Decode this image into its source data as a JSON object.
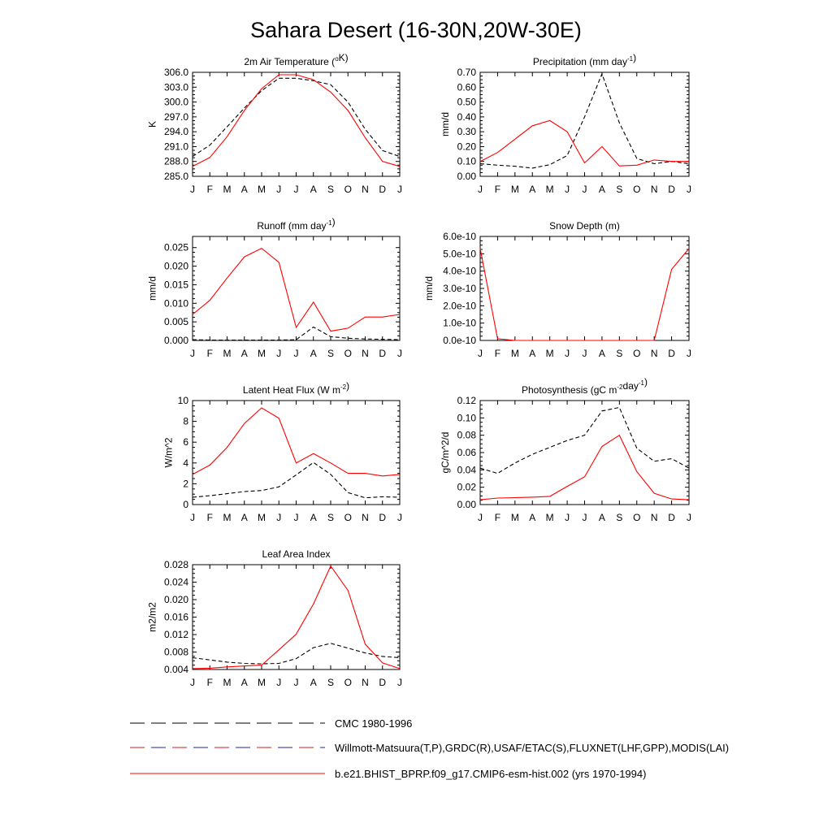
{
  "title": "Sahara Desert (16-30N,20W-30E)",
  "months": [
    "J",
    "F",
    "M",
    "A",
    "M",
    "J",
    "J",
    "A",
    "S",
    "O",
    "N",
    "D",
    "J"
  ],
  "legend": [
    {
      "label": "CMC 1980-1996",
      "style": "dash-long",
      "colors": [
        "#000000"
      ]
    },
    {
      "label": "Willmott-Matsuura(T,P),GRDC(R),USAF/ETAC(S),FLUXNET(LHF,GPP),MODIS(LAI)",
      "style": "dash-long",
      "colors": [
        "#cc2222",
        "#2222aa"
      ]
    },
    {
      "label": "b.e21.BHIST_BPRP.f09_g17.CMIP6-esm-hist.002 (yrs 1970-1994)",
      "style": "solid",
      "colors": [
        "#ff0000"
      ]
    }
  ],
  "chart_data": [
    {
      "type": "line",
      "title_parts": [
        [
          "2m Air Temperature (",
          ""
        ],
        [
          "o",
          "sup"
        ],
        [
          "K)",
          ""
        ]
      ],
      "ylabel": "K",
      "ylim": [
        285,
        306
      ],
      "yticks": [
        "285.0",
        "288.0",
        "291.0",
        "294.0",
        "297.0",
        "300.0",
        "303.0",
        "306.0"
      ],
      "ytick_values": [
        285,
        288,
        291,
        294,
        297,
        300,
        303,
        306
      ],
      "series": [
        {
          "name": "obs",
          "style": "dash",
          "color": "#000000",
          "values": [
            289.0,
            291.3,
            295.0,
            298.8,
            302.3,
            304.8,
            304.8,
            304.3,
            303.5,
            300.0,
            294.5,
            290.2,
            289.0
          ]
        },
        {
          "name": "model",
          "style": "solid",
          "color": "#ff0000",
          "values": [
            287.0,
            288.8,
            293.0,
            298.3,
            302.7,
            305.5,
            305.5,
            304.5,
            302.0,
            298.3,
            292.8,
            288.0,
            287.0
          ]
        }
      ]
    },
    {
      "type": "line",
      "title_parts": [
        [
          "Precipitation (mm day",
          ""
        ],
        [
          "-1",
          "sup"
        ],
        [
          ")",
          ""
        ]
      ],
      "ylabel": "mm/d",
      "ylim": [
        0,
        0.7
      ],
      "yticks": [
        "0.00",
        "0.10",
        "0.20",
        "0.30",
        "0.40",
        "0.50",
        "0.60",
        "0.70"
      ],
      "ytick_values": [
        0,
        0.1,
        0.2,
        0.3,
        0.4,
        0.5,
        0.6,
        0.7
      ],
      "series": [
        {
          "name": "obs",
          "style": "dash",
          "color": "#000000",
          "values": [
            0.085,
            0.075,
            0.068,
            0.055,
            0.078,
            0.14,
            0.4,
            0.69,
            0.36,
            0.12,
            0.085,
            0.1,
            0.085
          ]
        },
        {
          "name": "model",
          "style": "solid",
          "color": "#ff0000",
          "values": [
            0.1,
            0.16,
            0.25,
            0.34,
            0.375,
            0.3,
            0.09,
            0.2,
            0.07,
            0.075,
            0.11,
            0.1,
            0.1
          ]
        }
      ]
    },
    {
      "type": "line",
      "title_parts": [
        [
          "Runoff (mm day",
          ""
        ],
        [
          "-1",
          "sup"
        ],
        [
          ")",
          ""
        ]
      ],
      "ylabel": "mm/d",
      "ylim": [
        0,
        0.028
      ],
      "yticks": [
        "0.000",
        "0.005",
        "0.010",
        "0.015",
        "0.020",
        "0.025"
      ],
      "ytick_values": [
        0,
        0.005,
        0.01,
        0.015,
        0.02,
        0.025
      ],
      "series": [
        {
          "name": "obs",
          "style": "dash",
          "color": "#000000",
          "values": [
            0.0002,
            0.0001,
            0.0001,
            0.0001,
            0.0001,
            0.0001,
            0.0002,
            0.0036,
            0.001,
            0.0006,
            0.0004,
            0.0003,
            0.0002
          ]
        },
        {
          "name": "model",
          "style": "solid",
          "color": "#ff0000",
          "values": [
            0.007,
            0.0108,
            0.0168,
            0.0225,
            0.0248,
            0.021,
            0.0035,
            0.0103,
            0.0025,
            0.0033,
            0.0063,
            0.0063,
            0.007
          ]
        }
      ]
    },
    {
      "type": "line",
      "title_parts": [
        [
          "Snow Depth (m)",
          ""
        ]
      ],
      "ylabel": "mm/d",
      "ylim": [
        0,
        6e-10
      ],
      "yticks": [
        "0.0e-10",
        "1.0e-10",
        "2.0e-10",
        "3.0e-10",
        "4.0e-10",
        "5.0e-10",
        "6.0e-10"
      ],
      "ytick_values": [
        0,
        1e-10,
        2e-10,
        3e-10,
        4e-10,
        5e-10,
        6e-10
      ],
      "series": [
        {
          "name": "obs",
          "style": "dash",
          "color": "#000000",
          "values": [
            0,
            0,
            0,
            0,
            0,
            0,
            0,
            0,
            0,
            0,
            0,
            0,
            0
          ]
        },
        {
          "name": "model",
          "style": "solid",
          "color": "#ff0000",
          "values": [
            5.3e-10,
            1e-11,
            0,
            0,
            0,
            0,
            0,
            0,
            0,
            0,
            0,
            4.1e-10,
            5.3e-10
          ]
        }
      ]
    },
    {
      "type": "line",
      "title_parts": [
        [
          "Latent Heat Flux (W m",
          ""
        ],
        [
          "-2",
          "sup"
        ],
        [
          ")",
          ""
        ]
      ],
      "ylabel": "W/m^2",
      "ylim": [
        0,
        10
      ],
      "yticks": [
        "0",
        "2",
        "4",
        "6",
        "8",
        "10"
      ],
      "ytick_values": [
        0,
        2,
        4,
        6,
        8,
        10
      ],
      "series": [
        {
          "name": "obs",
          "style": "dash",
          "color": "#000000",
          "values": [
            0.7,
            0.85,
            1.05,
            1.25,
            1.35,
            1.7,
            2.85,
            4.05,
            2.9,
            1.15,
            0.65,
            0.75,
            0.7
          ]
        },
        {
          "name": "model",
          "style": "solid",
          "color": "#ff0000",
          "values": [
            2.9,
            3.8,
            5.5,
            7.8,
            9.3,
            8.3,
            4.0,
            4.9,
            4.0,
            3.0,
            3.0,
            2.75,
            2.9
          ]
        }
      ]
    },
    {
      "type": "line",
      "title_parts": [
        [
          "Photosynthesis (gC m",
          ""
        ],
        [
          "-2",
          "sup"
        ],
        [
          "day",
          ""
        ],
        [
          "-1",
          "sup"
        ],
        [
          ")",
          ""
        ]
      ],
      "ylabel": "gC/m^2/d",
      "ylim": [
        0,
        0.12
      ],
      "yticks": [
        "0.00",
        "0.02",
        "0.04",
        "0.06",
        "0.08",
        "0.10",
        "0.12"
      ],
      "ytick_values": [
        0,
        0.02,
        0.04,
        0.06,
        0.08,
        0.1,
        0.12
      ],
      "series": [
        {
          "name": "obs",
          "style": "dash",
          "color": "#000000",
          "values": [
            0.042,
            0.036,
            0.048,
            0.058,
            0.066,
            0.074,
            0.08,
            0.108,
            0.112,
            0.065,
            0.05,
            0.053,
            0.042
          ]
        },
        {
          "name": "model",
          "style": "solid",
          "color": "#ff0000",
          "values": [
            0.0055,
            0.0075,
            0.008,
            0.0085,
            0.0095,
            0.021,
            0.032,
            0.067,
            0.08,
            0.038,
            0.013,
            0.0065,
            0.0055
          ]
        }
      ]
    },
    {
      "type": "line",
      "title_parts": [
        [
          "Leaf Area Index",
          ""
        ]
      ],
      "ylabel": "m2/m2",
      "ylim": [
        0.004,
        0.028
      ],
      "yticks": [
        "0.004",
        "0.008",
        "0.012",
        "0.016",
        "0.020",
        "0.024",
        "0.028"
      ],
      "ytick_values": [
        0.004,
        0.008,
        0.012,
        0.016,
        0.02,
        0.024,
        0.028
      ],
      "series": [
        {
          "name": "obs",
          "style": "dash",
          "color": "#000000",
          "values": [
            0.0067,
            0.0062,
            0.0057,
            0.0054,
            0.0053,
            0.0054,
            0.0065,
            0.009,
            0.01,
            0.0089,
            0.0078,
            0.007,
            0.0067
          ]
        },
        {
          "name": "model",
          "style": "solid",
          "color": "#ff0000",
          "values": [
            0.0042,
            0.0043,
            0.0046,
            0.0048,
            0.005,
            0.0085,
            0.0121,
            0.019,
            0.0277,
            0.0221,
            0.0098,
            0.0055,
            0.0042
          ]
        }
      ]
    }
  ]
}
